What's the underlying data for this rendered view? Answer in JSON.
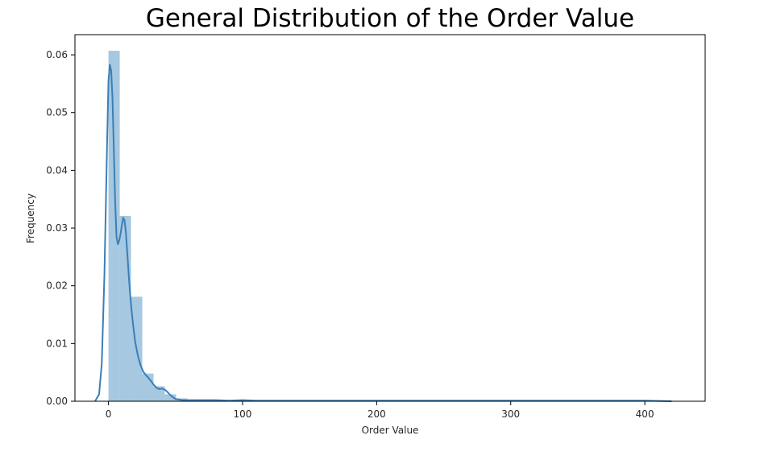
{
  "chart_data": {
    "type": "histogram",
    "title": "General Distribution of the Order Value",
    "xlabel": "Order Value",
    "ylabel": "Frequency",
    "xlim": [
      -25,
      445
    ],
    "ylim": [
      0,
      0.0635
    ],
    "x_ticks": [
      0,
      100,
      200,
      300,
      400
    ],
    "y_ticks": [
      0.0,
      0.01,
      0.02,
      0.03,
      0.04,
      0.05,
      0.06
    ],
    "bar_color": "#a6c8e0",
    "line_color": "#3a7fb8",
    "bin_width": 8.4,
    "bins": [
      {
        "start": 0.0,
        "value": 0.0607
      },
      {
        "start": 8.4,
        "value": 0.0321
      },
      {
        "start": 16.8,
        "value": 0.0181
      },
      {
        "start": 25.2,
        "value": 0.0048
      },
      {
        "start": 33.6,
        "value": 0.0026
      },
      {
        "start": 42.0,
        "value": 0.0012
      },
      {
        "start": 50.4,
        "value": 0.0005
      },
      {
        "start": 58.8,
        "value": 0.0003
      },
      {
        "start": 67.2,
        "value": 0.0003
      },
      {
        "start": 75.6,
        "value": 0.0002
      },
      {
        "start": 84.0,
        "value": 0.0001
      },
      {
        "start": 92.4,
        "value": 0.0001
      },
      {
        "start": 100.8,
        "value": 0.0002
      },
      {
        "start": 109.2,
        "value": 0.0001
      }
    ],
    "kde": {
      "x": [
        -10,
        -7,
        -5,
        -3,
        -1,
        0,
        1,
        2,
        3,
        4,
        5,
        6,
        7,
        8,
        9,
        10,
        11,
        12,
        13,
        14,
        15,
        16,
        17,
        18,
        19,
        20,
        22,
        24,
        26,
        28,
        30,
        32,
        34,
        36,
        38,
        40,
        42,
        44,
        46,
        48,
        50,
        55,
        60,
        70,
        80,
        90,
        100,
        110,
        120,
        150,
        200,
        250,
        300,
        350,
        400,
        420
      ],
      "y": [
        0.0,
        0.0012,
        0.0065,
        0.022,
        0.045,
        0.0555,
        0.0583,
        0.0573,
        0.0525,
        0.0435,
        0.0345,
        0.0285,
        0.0272,
        0.0278,
        0.029,
        0.0305,
        0.0318,
        0.0313,
        0.0292,
        0.0258,
        0.0222,
        0.019,
        0.0163,
        0.014,
        0.012,
        0.0102,
        0.0078,
        0.0062,
        0.0051,
        0.0045,
        0.004,
        0.0034,
        0.0028,
        0.0023,
        0.0021,
        0.0022,
        0.002,
        0.0016,
        0.0011,
        0.0007,
        0.0004,
        0.0002,
        0.0002,
        0.0002,
        0.0002,
        0.0001,
        0.0002,
        0.0001,
        0.0001,
        0.0001,
        0.0001,
        0.0001,
        0.0001,
        0.0001,
        0.0001,
        0.0
      ]
    }
  }
}
